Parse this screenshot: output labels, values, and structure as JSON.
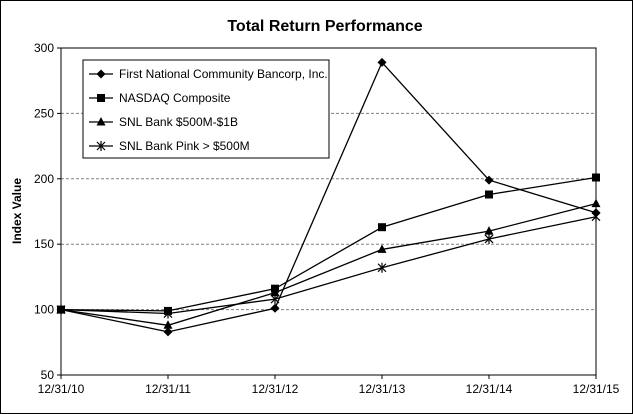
{
  "chart_data": {
    "type": "line",
    "title": "Total Return Performance",
    "xlabel": "",
    "ylabel": "Index Value",
    "categories": [
      "12/31/10",
      "12/31/11",
      "12/31/12",
      "12/31/13",
      "12/31/14",
      "12/31/15"
    ],
    "ylim": [
      50,
      300
    ],
    "yticks": [
      50,
      100,
      150,
      200,
      250,
      300
    ],
    "grid": "horizontal dashed",
    "legend_position": "top-left",
    "series": [
      {
        "name": "First National Community Bancorp, Inc.",
        "marker": "diamond",
        "values": [
          100,
          83,
          101,
          289,
          199,
          174
        ]
      },
      {
        "name": "NASDAQ Composite",
        "marker": "square",
        "values": [
          100,
          99,
          116,
          163,
          188,
          201
        ]
      },
      {
        "name": "SNL Bank $500M-$1B",
        "marker": "triangle",
        "values": [
          100,
          88,
          113,
          146,
          160,
          181
        ]
      },
      {
        "name": "SNL Bank Pink > $500M",
        "marker": "asterisk",
        "values": [
          100,
          97,
          108,
          132,
          154,
          171
        ]
      }
    ],
    "colors": {
      "line": "#000000",
      "grid": "#808080"
    }
  }
}
